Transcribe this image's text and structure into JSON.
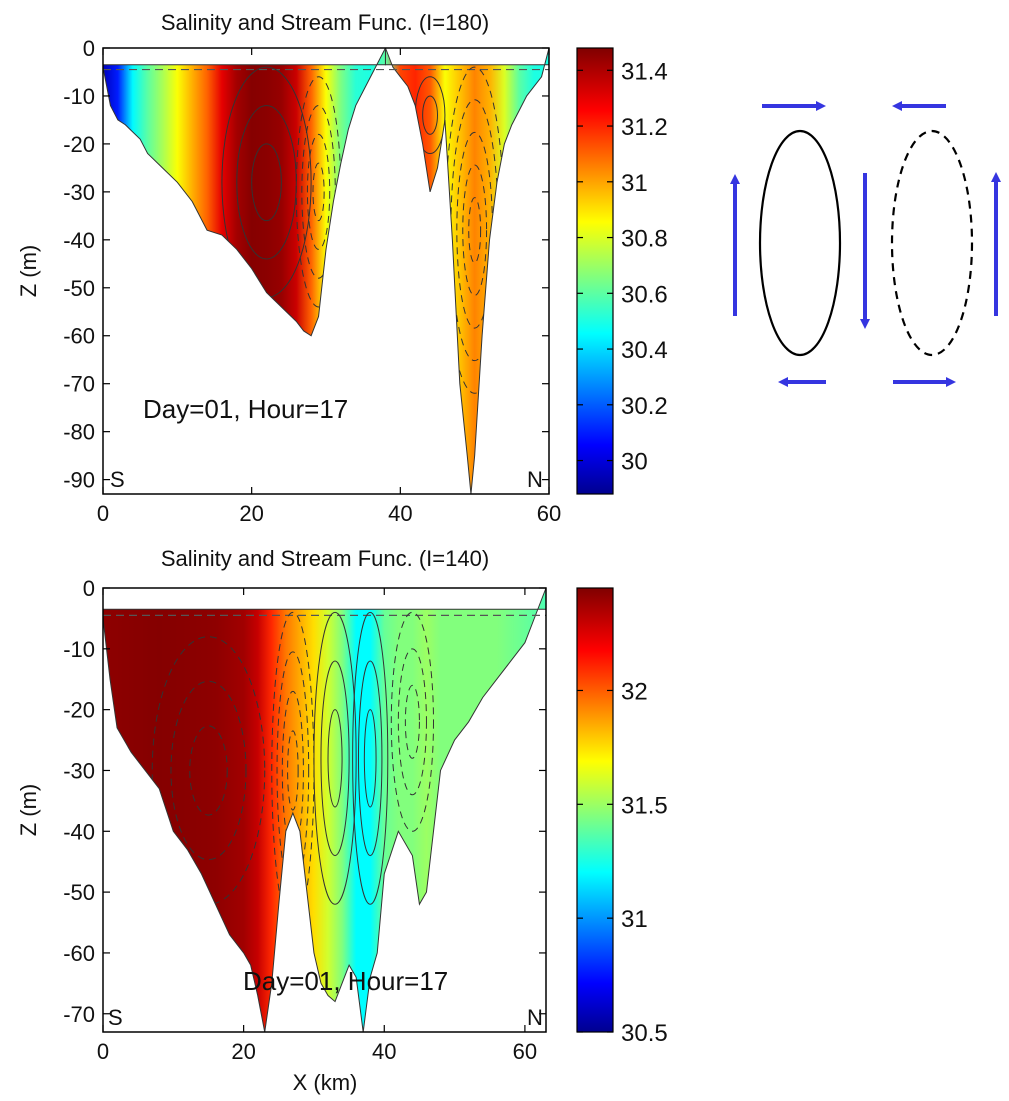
{
  "panels": [
    {
      "title": "Salinity and Stream Func. (I=180)",
      "ylabel": "Z (m)",
      "xlabel": "",
      "annotation": "Day=01, Hour=17",
      "left_label": "S",
      "right_label": "N",
      "xlim": [
        0,
        60
      ],
      "ylim": [
        -93,
        0
      ],
      "xticks": [
        0,
        20,
        40,
        60
      ],
      "yticks": [
        0,
        -10,
        -20,
        -30,
        -40,
        -50,
        -60,
        -70,
        -80,
        -90
      ],
      "colorbar": {
        "min": 29.88,
        "max": 31.48,
        "ticks": [
          31.4,
          31.2,
          31,
          30.8,
          30.6,
          30.4,
          30.2,
          30
        ]
      }
    },
    {
      "title": "Salinity and Stream Func. (I=140)",
      "ylabel": "Z (m)",
      "xlabel": "X (km)",
      "annotation": "Day=01, Hour=17",
      "left_label": "S",
      "right_label": "N",
      "xlim": [
        0,
        63
      ],
      "ylim": [
        -73,
        0
      ],
      "xticks": [
        0,
        20,
        40,
        60
      ],
      "yticks": [
        0,
        -10,
        -20,
        -30,
        -40,
        -50,
        -60,
        -70
      ],
      "colorbar": {
        "min": 30.5,
        "max": 32.45,
        "ticks": [
          32,
          31.5,
          31,
          30.5
        ]
      }
    }
  ],
  "chart_data": [
    {
      "type": "heatmap",
      "title": "Salinity and Stream Func. (I=180)",
      "xlabel": "",
      "ylabel": "Z (m)",
      "xlim": [
        0,
        60
      ],
      "ylim": [
        -93,
        0
      ],
      "colorbar_range": [
        29.88,
        31.48
      ],
      "bathymetry": {
        "x": [
          0,
          1,
          2,
          3,
          5,
          6,
          8,
          10,
          12,
          14,
          16,
          18,
          20,
          22,
          24,
          26,
          27,
          28,
          29,
          30,
          31,
          32,
          33,
          34,
          35,
          36,
          37,
          38
        ],
        "depth": [
          -4,
          -12,
          -15,
          -16,
          -19,
          -22,
          -25,
          -28,
          -32,
          -38,
          -39,
          -42,
          -46,
          -51,
          -54,
          -57,
          -59,
          -60,
          -56,
          -42,
          -32,
          -24,
          -17,
          -12,
          -9,
          -6,
          -3,
          0
        ]
      },
      "bathymetry_2": {
        "x": [
          38,
          39,
          40,
          41,
          42,
          43,
          44,
          45,
          46,
          47,
          48,
          49,
          49.5,
          50,
          51,
          52,
          53,
          54,
          55,
          56,
          57,
          58,
          59,
          60
        ],
        "depth": [
          0,
          -4,
          -6,
          -8,
          -12,
          -20,
          -30,
          -25,
          -15,
          -40,
          -70,
          -85,
          -93,
          -85,
          -60,
          -40,
          -28,
          -20,
          -16,
          -13,
          -10,
          -8,
          -6,
          0
        ]
      },
      "salinity_profile": {
        "x": [
          0,
          2,
          4,
          6,
          8,
          10,
          12,
          14,
          16,
          18,
          20,
          22,
          24,
          26,
          28,
          30,
          32,
          34,
          36,
          38,
          40,
          42,
          44,
          46,
          48,
          50,
          52,
          54,
          56,
          58,
          60
        ],
        "value": [
          29.95,
          30.1,
          30.45,
          30.6,
          30.72,
          30.85,
          30.98,
          31.1,
          31.3,
          31.42,
          31.47,
          31.46,
          31.44,
          31.35,
          31.1,
          30.85,
          30.65,
          30.52,
          30.5,
          30.6,
          31.15,
          31.2,
          31.12,
          30.85,
          30.95,
          31.05,
          30.98,
          30.8,
          30.6,
          30.5,
          30.5
        ]
      }
    },
    {
      "type": "heatmap",
      "title": "Salinity and Stream Func. (I=140)",
      "xlabel": "X (km)",
      "ylabel": "Z (m)",
      "xlim": [
        0,
        63
      ],
      "ylim": [
        -73,
        0
      ],
      "colorbar_range": [
        30.5,
        32.45
      ],
      "bathymetry": {
        "x": [
          0,
          1,
          2,
          4,
          6,
          8,
          10,
          12,
          14,
          16,
          18,
          20,
          21,
          22,
          23,
          24,
          25,
          26,
          27,
          28,
          29,
          30,
          31,
          32,
          33,
          34,
          35,
          36,
          37,
          38,
          39,
          40,
          42,
          44,
          45,
          46,
          47,
          48,
          50,
          52,
          54,
          56,
          58,
          60,
          61,
          62,
          63
        ],
        "depth": [
          -5,
          -15,
          -23,
          -27,
          -30,
          -33,
          -40,
          -43,
          -47,
          -52,
          -57,
          -60,
          -62,
          -67,
          -73,
          -65,
          -52,
          -40,
          -37,
          -40,
          -50,
          -60,
          -65,
          -67,
          -68,
          -65,
          -62,
          -64,
          -73,
          -64,
          -60,
          -47,
          -40,
          -44,
          -52,
          -50,
          -40,
          -30,
          -25,
          -22,
          -18,
          -15,
          -12,
          -9,
          -6,
          -3,
          0
        ]
      },
      "salinity_profile": {
        "x": [
          0,
          4,
          8,
          12,
          16,
          20,
          22,
          24,
          26,
          28,
          30,
          32,
          34,
          36,
          38,
          40,
          42,
          44,
          46,
          48,
          52,
          56,
          60,
          63
        ],
        "value": [
          32.42,
          32.43,
          32.44,
          32.43,
          32.42,
          32.38,
          32.3,
          32.1,
          31.95,
          31.85,
          31.75,
          31.6,
          31.45,
          31.2,
          31.2,
          31.4,
          31.45,
          31.45,
          31.5,
          31.45,
          31.45,
          31.45,
          31.4,
          31.35
        ]
      }
    }
  ],
  "schematic": {
    "arrow_color": "#3535e0",
    "cells": [
      "solid-ellipse",
      "dashed-ellipse"
    ]
  }
}
